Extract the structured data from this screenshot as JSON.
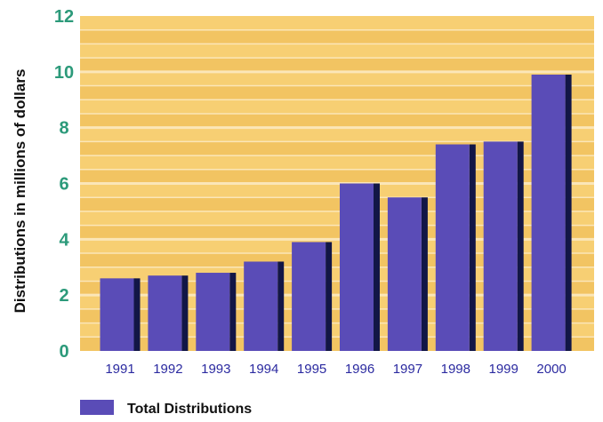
{
  "colors": {
    "plot_bg": "#f7cf73",
    "stripe": "#f2c462",
    "gridline": "#fbe6b8",
    "bar_face": "#5a4cb7",
    "bar_side": "#121646",
    "ytick_text": "#2c9a7a",
    "xtick_text": "#2b2aa0",
    "label_text": "#111111"
  },
  "chart_data": {
    "type": "bar",
    "title": "",
    "xlabel": "",
    "ylabel": "Distributions in millions of dollars",
    "categories": [
      "1991",
      "1992",
      "1993",
      "1994",
      "1995",
      "1996",
      "1997",
      "1998",
      "1999",
      "2000"
    ],
    "series": [
      {
        "name": "Total Distributions",
        "values": [
          2.6,
          2.7,
          2.8,
          3.2,
          3.9,
          6.0,
          5.5,
          7.4,
          7.5,
          9.9
        ]
      }
    ],
    "ylim": [
      0,
      12
    ],
    "yticks": [
      "0",
      "2",
      "4",
      "6",
      "8",
      "10",
      "12"
    ],
    "grid": true,
    "legend_position": "bottom-left"
  }
}
